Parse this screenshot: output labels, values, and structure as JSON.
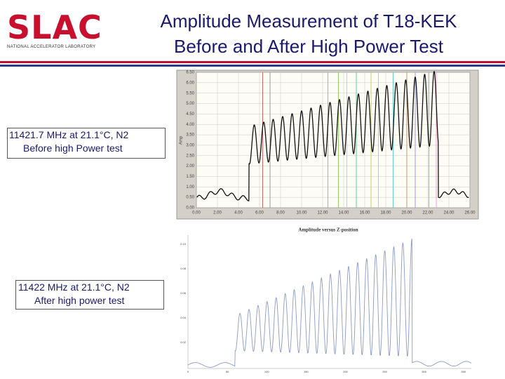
{
  "header": {
    "logo": "SLAC",
    "logo_subtitle": "NATIONAL ACCELERATOR LABORATORY",
    "title_line1": "Amplitude Measurement of T18-KEK",
    "title_line2": "Before and After High Power Test"
  },
  "captions": [
    {
      "line1": "11421.7 MHz at 21.1°C, N2",
      "line2": "Before high Power test"
    },
    {
      "line1": "11422 MHz at 21.1°C, N2",
      "line2": "After high power test"
    }
  ],
  "plot_before": {
    "y_label": "Amp",
    "y_ticks": [
      "0.00",
      "0.50",
      "1.00",
      "1.50",
      "2.00",
      "2.50",
      "3.00",
      "3.50",
      "4.00",
      "4.50",
      "5.00",
      "5.50",
      "6.00",
      "6.50"
    ],
    "x_ticks": [
      "0.00",
      "2.00",
      "4.00",
      "6.00",
      "8.00",
      "10.00",
      "12.00",
      "14.00",
      "16.00",
      "18.00",
      "20.00",
      "22.00",
      "24.00",
      "26.00"
    ]
  },
  "plot_after": {
    "title": "Amplitude versus Z-position",
    "y_ticks": [
      "0.02",
      "0.04",
      "0.06",
      "0.08",
      "0.10"
    ],
    "x_ticks": [
      "0",
      "50",
      "100",
      "150",
      "200",
      "250",
      "300",
      "350"
    ]
  }
}
